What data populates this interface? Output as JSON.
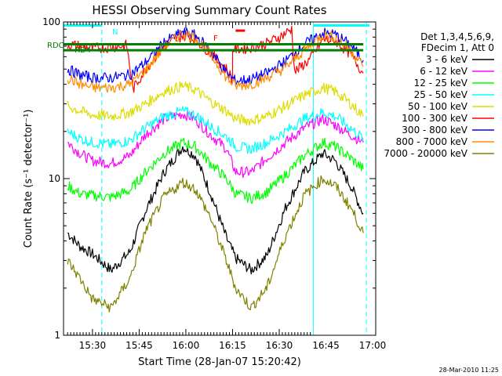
{
  "chart_data": {
    "type": "line",
    "title": "HESSI Observing Summary Count Rates",
    "xlabel": "Start Time (28-Jan-07 15:20:42)",
    "ylabel": "Count Rate (s⁻¹ detector⁻¹)",
    "yscale": "log",
    "ylim": [
      1,
      100
    ],
    "xlim": [
      "15:20:42",
      "17:01:00"
    ],
    "x_ticks": [
      "15:30",
      "15:45",
      "16:00",
      "16:15",
      "16:30",
      "16:45",
      "17:00"
    ],
    "y_ticks": [
      "1",
      "10",
      "100"
    ],
    "legend_header": [
      "Det 1,3,4,5,6,9,",
      "FDecim 1, Att 0"
    ],
    "legend_position": "right",
    "timestamp": "28-Mar-2010 11:25",
    "flag_labels": {
      "N": "N",
      "F": "F",
      "RDC": "RDC",
      "RD4": "RD4"
    },
    "series": [
      {
        "name": "3 - 6 keV",
        "color": "#000000",
        "points": [
          [
            "15:22",
            4.5
          ],
          [
            "15:26",
            3.7
          ],
          [
            "15:30",
            3.3
          ],
          [
            "15:36",
            2.6
          ],
          [
            "15:42",
            3.4
          ],
          [
            "15:47",
            6.2
          ],
          [
            "15:53",
            11
          ],
          [
            "15:59",
            16
          ],
          [
            "16:03",
            14
          ],
          [
            "16:08",
            8
          ],
          [
            "16:13",
            4.2
          ],
          [
            "16:16",
            3.1
          ],
          [
            "16:21",
            2.6
          ],
          [
            "16:26",
            3.2
          ],
          [
            "16:32",
            6.5
          ],
          [
            "16:38",
            11
          ],
          [
            "16:44",
            14.5
          ],
          [
            "16:48",
            13
          ],
          [
            "16:53",
            9
          ],
          [
            "16:57",
            6
          ]
        ]
      },
      {
        "name": "6 - 12 keV",
        "color": "#ff00ff",
        "points": [
          [
            "15:22",
            17
          ],
          [
            "15:26",
            14.5
          ],
          [
            "15:30",
            13
          ],
          [
            "15:36",
            12.5
          ],
          [
            "15:42",
            14
          ],
          [
            "15:47",
            19
          ],
          [
            "15:53",
            24
          ],
          [
            "15:59",
            26
          ],
          [
            "16:03",
            24
          ],
          [
            "16:08",
            19
          ],
          [
            "16:13",
            15.5
          ],
          [
            "16:16",
            11
          ],
          [
            "16:21",
            11
          ],
          [
            "16:26",
            13.5
          ],
          [
            "16:32",
            17
          ],
          [
            "16:38",
            21
          ],
          [
            "16:44",
            24
          ],
          [
            "16:48",
            22
          ],
          [
            "16:53",
            19
          ],
          [
            "16:57",
            17
          ]
        ]
      },
      {
        "name": "12 - 25 keV",
        "color": "#00ff00",
        "points": [
          [
            "15:22",
            9
          ],
          [
            "15:26",
            8
          ],
          [
            "15:30",
            7.8
          ],
          [
            "15:36",
            7.6
          ],
          [
            "15:42",
            8.4
          ],
          [
            "15:47",
            11
          ],
          [
            "15:53",
            14.5
          ],
          [
            "15:59",
            17
          ],
          [
            "16:03",
            16
          ],
          [
            "16:08",
            12.5
          ],
          [
            "16:13",
            10
          ],
          [
            "16:16",
            8
          ],
          [
            "16:21",
            7.5
          ],
          [
            "16:26",
            8.2
          ],
          [
            "16:32",
            10.5
          ],
          [
            "16:38",
            14
          ],
          [
            "16:44",
            17
          ],
          [
            "16:48",
            16
          ],
          [
            "16:53",
            13.5
          ],
          [
            "16:57",
            11.5
          ]
        ]
      },
      {
        "name": "25 - 50 keV",
        "color": "#00ffff",
        "points": [
          [
            "15:22",
            20
          ],
          [
            "15:26",
            18
          ],
          [
            "15:30",
            17
          ],
          [
            "15:36",
            16.5
          ],
          [
            "15:42",
            17.5
          ],
          [
            "15:47",
            21
          ],
          [
            "15:53",
            25
          ],
          [
            "15:59",
            27
          ],
          [
            "16:03",
            25.5
          ],
          [
            "16:08",
            21.5
          ],
          [
            "16:13",
            18.5
          ],
          [
            "16:16",
            16
          ],
          [
            "16:21",
            15.5
          ],
          [
            "16:26",
            17
          ],
          [
            "16:32",
            20
          ],
          [
            "16:38",
            24
          ],
          [
            "16:44",
            26.5
          ],
          [
            "16:48",
            25
          ],
          [
            "16:53",
            21
          ],
          [
            "16:57",
            18
          ]
        ]
      },
      {
        "name": "50 - 100 keV",
        "color": "#dddd00",
        "points": [
          [
            "15:22",
            29
          ],
          [
            "15:26",
            27
          ],
          [
            "15:30",
            25.5
          ],
          [
            "15:36",
            25
          ],
          [
            "15:42",
            26.5
          ],
          [
            "15:47",
            30
          ],
          [
            "15:53",
            36
          ],
          [
            "15:59",
            39
          ],
          [
            "16:03",
            37
          ],
          [
            "16:08",
            31
          ],
          [
            "16:13",
            27
          ],
          [
            "16:16",
            24
          ],
          [
            "16:21",
            23.5
          ],
          [
            "16:26",
            25
          ],
          [
            "16:32",
            29
          ],
          [
            "16:38",
            34
          ],
          [
            "16:44",
            38
          ],
          [
            "16:48",
            36
          ],
          [
            "16:53",
            30
          ],
          [
            "16:57",
            25
          ]
        ]
      },
      {
        "name": "100 - 300 keV",
        "color": "#ff0000",
        "points": [
          [
            "15:22",
            72
          ],
          [
            "15:26",
            70
          ],
          [
            "15:30",
            68
          ],
          [
            "15:36",
            69
          ],
          [
            "15:41",
            71
          ],
          [
            "15:43",
            37
          ],
          [
            "15:47",
            50
          ],
          [
            "15:53",
            70
          ],
          [
            "15:59",
            82
          ],
          [
            "16:03",
            78
          ],
          [
            "16:08",
            63
          ],
          [
            "16:13",
            50
          ],
          [
            "16:15",
            43
          ],
          [
            "16:15",
            67
          ],
          [
            "16:20",
            68
          ],
          [
            "16:26",
            73
          ],
          [
            "16:30",
            80
          ],
          [
            "16:34",
            90
          ],
          [
            "16:35",
            48
          ],
          [
            "16:40",
            58
          ],
          [
            "16:44",
            77
          ],
          [
            "16:48",
            76
          ],
          [
            "16:53",
            62
          ],
          [
            "16:57",
            47
          ]
        ]
      },
      {
        "name": "300 - 800 keV",
        "color": "#0000ff",
        "points": [
          [
            "15:22",
            50
          ],
          [
            "15:26",
            46
          ],
          [
            "15:30",
            44
          ],
          [
            "15:36",
            44
          ],
          [
            "15:42",
            46
          ],
          [
            "15:47",
            55
          ],
          [
            "15:53",
            74
          ],
          [
            "15:59",
            86
          ],
          [
            "16:03",
            82
          ],
          [
            "16:08",
            66
          ],
          [
            "16:13",
            47
          ],
          [
            "16:16",
            42
          ],
          [
            "16:21",
            43
          ],
          [
            "16:26",
            47
          ],
          [
            "16:32",
            56
          ],
          [
            "16:38",
            72
          ],
          [
            "16:44",
            85
          ],
          [
            "16:48",
            83
          ],
          [
            "16:53",
            71
          ],
          [
            "16:57",
            57
          ]
        ]
      },
      {
        "name": "800 - 7000 keV",
        "color": "#ff8c00",
        "points": [
          [
            "15:22",
            44
          ],
          [
            "15:26",
            40
          ],
          [
            "15:30",
            38
          ],
          [
            "15:36",
            38
          ],
          [
            "15:42",
            40
          ],
          [
            "15:47",
            49
          ],
          [
            "15:53",
            69
          ],
          [
            "15:59",
            85
          ],
          [
            "16:03",
            80
          ],
          [
            "16:08",
            62
          ],
          [
            "16:13",
            44
          ],
          [
            "16:16",
            39
          ],
          [
            "16:21",
            40
          ],
          [
            "16:26",
            44
          ],
          [
            "16:32",
            51
          ],
          [
            "16:38",
            66
          ],
          [
            "16:44",
            83
          ],
          [
            "16:48",
            80
          ],
          [
            "16:53",
            66
          ],
          [
            "16:57",
            52
          ]
        ]
      },
      {
        "name": "7000 - 20000 keV",
        "color": "#808000",
        "points": [
          [
            "15:22",
            3.0
          ],
          [
            "15:26",
            2.3
          ],
          [
            "15:30",
            1.7
          ],
          [
            "15:36",
            1.5
          ],
          [
            "15:42",
            2.3
          ],
          [
            "15:47",
            4.6
          ],
          [
            "15:53",
            7.6
          ],
          [
            "15:59",
            9.5
          ],
          [
            "16:03",
            8.6
          ],
          [
            "16:08",
            5.6
          ],
          [
            "16:13",
            3.0
          ],
          [
            "16:16",
            2.0
          ],
          [
            "16:21",
            1.5
          ],
          [
            "16:26",
            2.0
          ],
          [
            "16:32",
            4.3
          ],
          [
            "16:38",
            7.8
          ],
          [
            "16:44",
            10
          ],
          [
            "16:48",
            9
          ],
          [
            "16:53",
            6.5
          ],
          [
            "16:57",
            4.5
          ]
        ]
      }
    ],
    "flags": [
      {
        "label": "RDC",
        "color": "#008000",
        "level": 72,
        "segments": [
          [
            "15:20:42",
            "15:41"
          ],
          [
            "15:41",
            "16:57"
          ]
        ]
      },
      {
        "label": "RD4",
        "color": "#008000",
        "level": 66,
        "segments": [
          [
            "15:20:42",
            "16:57"
          ]
        ]
      },
      {
        "label": "N",
        "color": "#00ffff",
        "level": 95,
        "segments": [
          [
            "15:20:42",
            "15:33"
          ],
          [
            "16:41",
            "16:59"
          ]
        ]
      },
      {
        "label": "F",
        "color": "#ff0000",
        "level": 88,
        "segments": [
          [
            "16:16",
            "16:19"
          ]
        ]
      }
    ],
    "vertical_markers": [
      {
        "time": "15:20:42",
        "color": "#00ffff",
        "style": "solid"
      },
      {
        "time": "15:33",
        "color": "#00ffff",
        "style": "dashed"
      },
      {
        "time": "16:41",
        "color": "#00ffff",
        "style": "solid"
      },
      {
        "time": "16:58",
        "color": "#00ffff",
        "style": "dashed"
      }
    ]
  }
}
